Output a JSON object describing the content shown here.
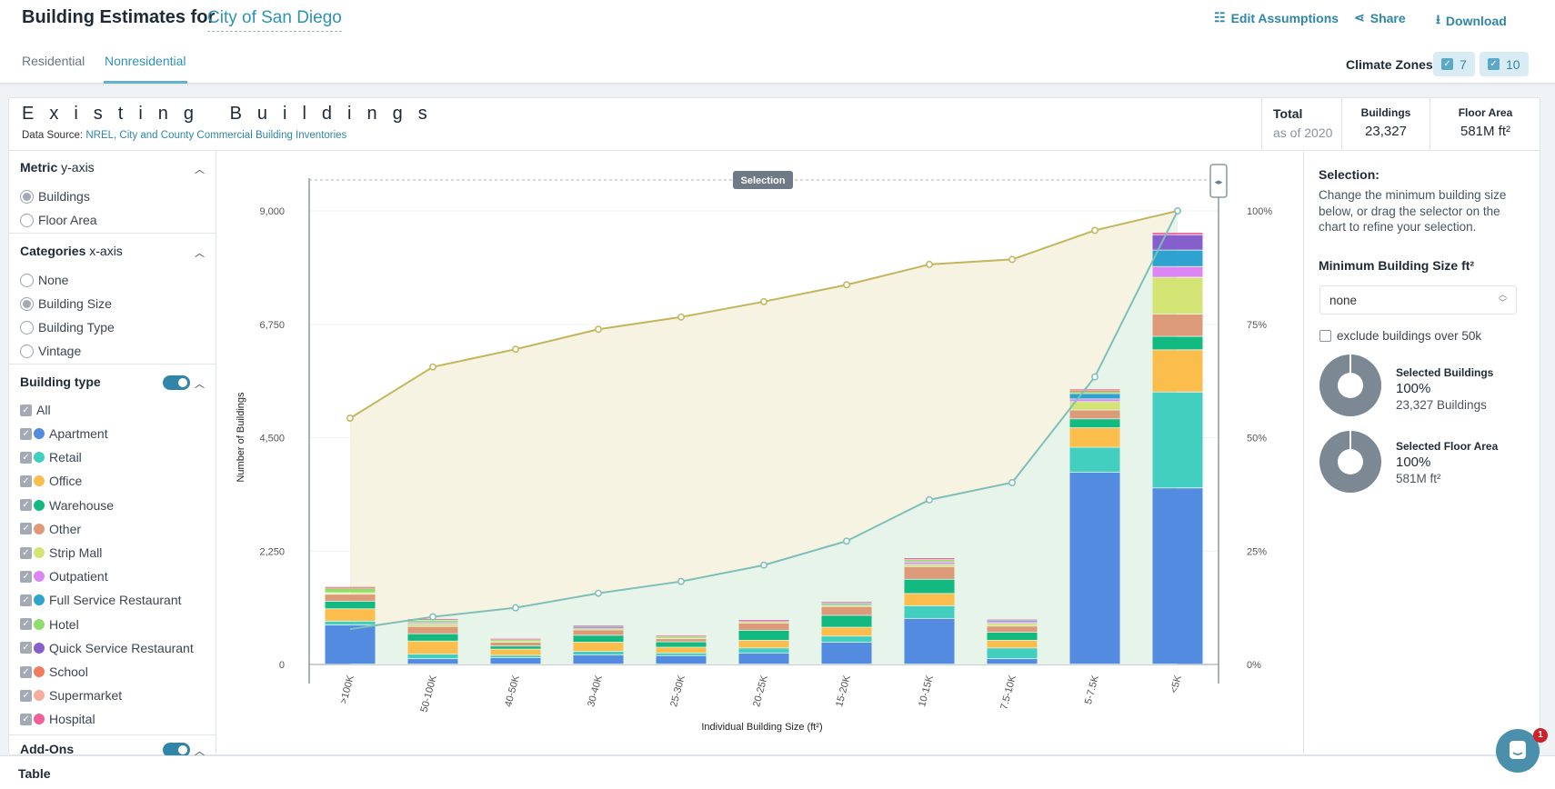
{
  "header": {
    "title": "Building Estimates for",
    "city": "City of San Diego",
    "actions": {
      "edit": "Edit Assumptions",
      "share": "Share",
      "download": "Download"
    },
    "tabs": [
      {
        "label": "Residential",
        "active": false
      },
      {
        "label": "Nonresidential",
        "active": true
      }
    ],
    "climate_zones": {
      "label": "Climate Zones",
      "zones": [
        "7",
        "10"
      ]
    }
  },
  "card": {
    "title": "Existing Buildings",
    "source_label": "Data Source:",
    "source_link": "NREL, City and County Commercial Building Inventories",
    "total_label": "Total",
    "as_of": "as of 2020",
    "buildings_label": "Buildings",
    "buildings_value": "23,327",
    "floor_area_label": "Floor Area",
    "floor_area_value": "581M ft²"
  },
  "sidebar": {
    "metric": {
      "title": "Metric",
      "suffix": "y-axis",
      "options": [
        {
          "label": "Buildings",
          "selected": true
        },
        {
          "label": "Floor Area",
          "selected": false
        }
      ]
    },
    "categories": {
      "title": "Categories",
      "suffix": "x-axis",
      "options": [
        {
          "label": "None",
          "selected": false
        },
        {
          "label": "Building Size",
          "selected": true
        },
        {
          "label": "Building Type",
          "selected": false
        },
        {
          "label": "Vintage",
          "selected": false
        }
      ]
    },
    "building_type": {
      "title": "Building type",
      "enabled": true,
      "all_label": "All",
      "items": [
        {
          "label": "Apartment",
          "color": "#528be0",
          "checked": true
        },
        {
          "label": "Retail",
          "color": "#43cfc0",
          "checked": true
        },
        {
          "label": "Office",
          "color": "#fbbd4c",
          "checked": true
        },
        {
          "label": "Warehouse",
          "color": "#12b981",
          "checked": true
        },
        {
          "label": "Other",
          "color": "#dd9a78",
          "checked": true
        },
        {
          "label": "Strip Mall",
          "color": "#d3e474",
          "checked": true
        },
        {
          "label": "Outpatient",
          "color": "#dc86f6",
          "checked": true
        },
        {
          "label": "Full Service Restaurant",
          "color": "#2ea3cf",
          "checked": true
        },
        {
          "label": "Hotel",
          "color": "#8fdd6b",
          "checked": true
        },
        {
          "label": "Quick Service Restaurant",
          "color": "#8560cc",
          "checked": true
        },
        {
          "label": "School",
          "color": "#f47a5e",
          "checked": true
        },
        {
          "label": "Supermarket",
          "color": "#f6ad9a",
          "checked": true
        },
        {
          "label": "Hospital",
          "color": "#f0609a",
          "checked": true
        }
      ]
    },
    "addons": {
      "title": "Add-Ons",
      "enabled": true
    }
  },
  "selection_panel": {
    "title": "Selection:",
    "description": "Change the minimum building size below, or drag the selector on the chart to refine your selection.",
    "min_size_label": "Minimum Building Size ft²",
    "min_size_value": "none",
    "exclude_label": "exclude buildings over 50k",
    "exclude_checked": false,
    "selected_buildings": {
      "label": "Selected Buildings",
      "percent": "100%",
      "detail": "23,327 Buildings"
    },
    "selected_floor_area": {
      "label": "Selected Floor Area",
      "percent": "100%",
      "detail": "581M ft²"
    }
  },
  "bottom": {
    "table_label": "Table",
    "chat_badge": "1"
  },
  "chart_data": {
    "type": "bar",
    "stacked": true,
    "xlabel": "Individual Building Size (ft²)",
    "ylabel": "Number of Buildings",
    "ylim": [
      0,
      9000
    ],
    "yticks": [
      "0",
      "2,250",
      "4,500",
      "6,750",
      "9,000"
    ],
    "y2lim": [
      0,
      100
    ],
    "y2ticks": [
      "0%",
      "25%",
      "50%",
      "75%",
      "100%"
    ],
    "grid": true,
    "selection_label": "Selection",
    "categories": [
      ">100K",
      "50-100K",
      "40-50K",
      "30-40K",
      "25-30K",
      "20-25K",
      "15-20K",
      "10-15K",
      "7.5-10K",
      "5-7.5K",
      "<5K"
    ],
    "series": [
      {
        "name": "Apartment",
        "color": "#528be0",
        "values": [
          777,
          107,
          129,
          183,
          168,
          221,
          434,
          906,
          107,
          3807,
          3495
        ]
      },
      {
        "name": "Retail",
        "color": "#43cfc0",
        "values": [
          76,
          91,
          46,
          69,
          53,
          99,
          122,
          251,
          213,
          495,
          1904
        ]
      },
      {
        "name": "Office",
        "color": "#fbbd4c",
        "values": [
          243,
          259,
          122,
          183,
          114,
          152,
          175,
          244,
          152,
          388,
          837
        ]
      },
      {
        "name": "Warehouse",
        "color": "#12b981",
        "values": [
          153,
          145,
          61,
          137,
          107,
          198,
          236,
          282,
          160,
          176,
          267
        ]
      },
      {
        "name": "Other",
        "color": "#dd9a78",
        "values": [
          137,
          145,
          76,
          107,
          61,
          145,
          175,
          251,
          122,
          175,
          441
        ]
      },
      {
        "name": "Strip Mall",
        "color": "#d3e474",
        "values": [
          30,
          46,
          30,
          38,
          30,
          38,
          46,
          46,
          53,
          167,
          731
        ]
      },
      {
        "name": "Outpatient",
        "color": "#dc86f6",
        "values": [
          0,
          30,
          0,
          15,
          0,
          15,
          0,
          46,
          30,
          53,
          213
        ]
      },
      {
        "name": "Full Service Restaurant",
        "color": "#2ea3cf",
        "values": [
          0,
          0,
          0,
          15,
          0,
          0,
          23,
          0,
          23,
          107,
          327
        ]
      },
      {
        "name": "Hotel",
        "color": "#8fdd6b",
        "values": [
          92,
          46,
          23,
          0,
          15,
          0,
          0,
          46,
          0,
          46,
          0
        ]
      },
      {
        "name": "Quick Service Restaurant",
        "color": "#8560cc",
        "values": [
          0,
          0,
          0,
          0,
          0,
          0,
          0,
          0,
          0,
          0,
          305
        ]
      },
      {
        "name": "School",
        "color": "#f47a5e",
        "values": [
          0,
          0,
          0,
          0,
          0,
          0,
          0,
          0,
          0,
          15,
          0
        ]
      },
      {
        "name": "Supermarket",
        "color": "#f6ad9a",
        "values": [
          15,
          0,
          0,
          0,
          0,
          0,
          0,
          0,
          0,
          15,
          0
        ]
      },
      {
        "name": "Hospital",
        "color": "#f0609a",
        "values": [
          15,
          30,
          23,
          23,
          23,
          15,
          30,
          38,
          30,
          15,
          46
        ]
      }
    ],
    "lines": [
      {
        "axis": "right",
        "color": "#c2b65a",
        "fill": "#f6f3e2",
        "values": [
          54.3,
          65.6,
          69.5,
          73.9,
          76.6,
          80.0,
          83.7,
          88.2,
          89.3,
          95.7,
          100
        ]
      },
      {
        "axis": "right",
        "color": "#7fbfb8",
        "fill": "#e7f4ea",
        "values": [
          7.8,
          10.5,
          12.5,
          15.7,
          18.3,
          21.9,
          27.2,
          36.3,
          40.1,
          63.4,
          100
        ]
      }
    ]
  }
}
